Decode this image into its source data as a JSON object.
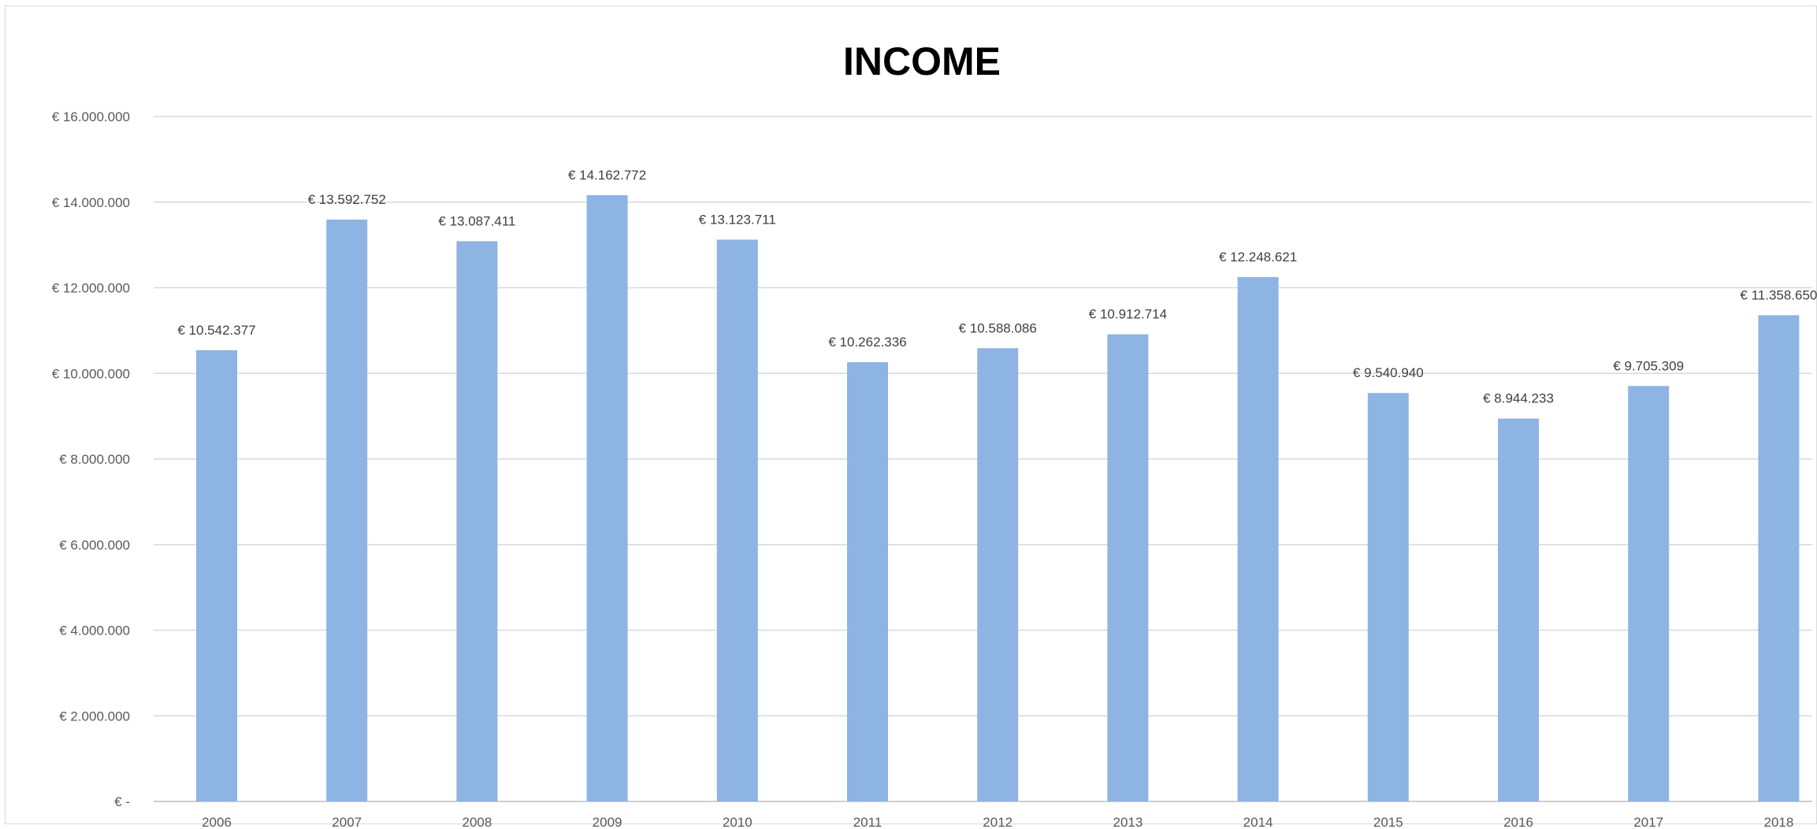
{
  "chart_data": {
    "type": "bar",
    "title": "INCOME",
    "xlabel": "",
    "ylabel": "",
    "categories": [
      "2006",
      "2007",
      "2008",
      "2009",
      "2010",
      "2011",
      "2012",
      "2013",
      "2014",
      "2015",
      "2016",
      "2017",
      "2018"
    ],
    "values": [
      10542377,
      13592752,
      13087411,
      14162772,
      13123711,
      10262336,
      10588086,
      10912714,
      12248621,
      9540940,
      8944233,
      9705309,
      11358650
    ],
    "data_labels": [
      "€ 10.542.377",
      "€ 13.592.752",
      "€ 13.087.411",
      "€ 14.162.772",
      "€ 13.123.711",
      "€ 10.262.336",
      "€ 10.588.086",
      "€ 10.912.714",
      "€ 12.248.621",
      "€ 9.540.940",
      "€ 8.944.233",
      "€ 9.705.309",
      "€ 11.358.650"
    ],
    "ylim": [
      0,
      16000000
    ],
    "y_ticks": [
      0,
      2000000,
      4000000,
      6000000,
      8000000,
      10000000,
      12000000,
      14000000,
      16000000
    ],
    "y_tick_labels": [
      "€ -",
      "€ 2.000.000",
      "€ 4.000.000",
      "€ 6.000.000",
      "€ 8.000.000",
      "€ 10.000.000",
      "€ 12.000.000",
      "€ 14.000.000",
      "€ 16.000.000"
    ],
    "grid": true,
    "legend": "none",
    "bar_color": "#8eb4e3"
  }
}
